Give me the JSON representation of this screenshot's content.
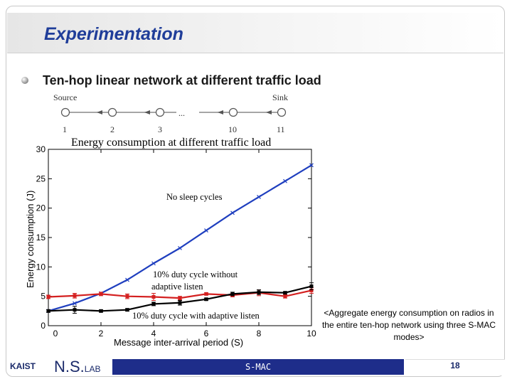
{
  "slide": {
    "title": "Experimentation",
    "bullet": "Ten-hop linear network at different traffic load",
    "caption": "<Aggregate energy consumption on radios in the entire ten-hop network using three S-MAC modes>",
    "footer_center": "S-MAC",
    "page_number": "18",
    "logo_kaist": "KAIST",
    "logo_ns": "N.S.",
    "logo_lab": "LAB"
  },
  "topology": {
    "source_label": "Source",
    "sink_label": "Sink",
    "node_labels": [
      "1",
      "2",
      "3",
      "10",
      "11"
    ],
    "ellipsis": "..."
  },
  "chart_data": {
    "type": "line",
    "title": "Energy consumption at different traffic load",
    "xlabel": "Message inter-arrival period (S)",
    "ylabel": "Energy consumption (J)",
    "xlim": [
      0,
      10
    ],
    "ylim": [
      0,
      30
    ],
    "xticks": [
      0,
      2,
      4,
      6,
      8,
      10
    ],
    "yticks": [
      0,
      5,
      10,
      15,
      20,
      25,
      30
    ],
    "grid": false,
    "series": [
      {
        "name": "No sleep cycles",
        "color": "#1f3fbf",
        "x": [
          0,
          1,
          2,
          3,
          4,
          5,
          6,
          7,
          8,
          9,
          10
        ],
        "y": [
          2.5,
          3.8,
          5.5,
          7.8,
          10.6,
          13.2,
          16.2,
          19.2,
          21.9,
          24.6,
          27.3
        ],
        "err": [
          0,
          0,
          0,
          0,
          0,
          0,
          0,
          0,
          0,
          0,
          0
        ]
      },
      {
        "name": "10% duty cycle without adaptive listen",
        "color": "#d42020",
        "x": [
          0,
          1,
          2,
          3,
          4,
          5,
          6,
          7,
          8,
          9,
          10
        ],
        "y": [
          4.9,
          5.1,
          5.4,
          5.0,
          4.9,
          4.7,
          5.4,
          5.2,
          5.6,
          5.0,
          6.0
        ],
        "err": [
          0.3,
          0.4,
          0.3,
          0.4,
          0.6,
          0.3,
          0.2,
          0.3,
          0.5,
          0.3,
          0.5
        ]
      },
      {
        "name": "10% duty cycle with adaptive listen",
        "color": "#000000",
        "x": [
          0,
          1,
          2,
          3,
          4,
          5,
          6,
          7,
          8,
          9,
          10
        ],
        "y": [
          2.5,
          2.7,
          2.5,
          2.7,
          3.7,
          3.9,
          4.5,
          5.4,
          5.7,
          5.6,
          6.7
        ],
        "err": [
          0.2,
          0.6,
          0.2,
          0.2,
          0.3,
          0.4,
          0.2,
          0.3,
          0.4,
          0.2,
          0.6
        ]
      }
    ],
    "annotations": [
      {
        "text": "No sleep cycles"
      },
      {
        "text": "10% duty cycle without"
      },
      {
        "text": "adaptive listen"
      },
      {
        "text": "10% duty cycle with adaptive listen"
      }
    ]
  }
}
